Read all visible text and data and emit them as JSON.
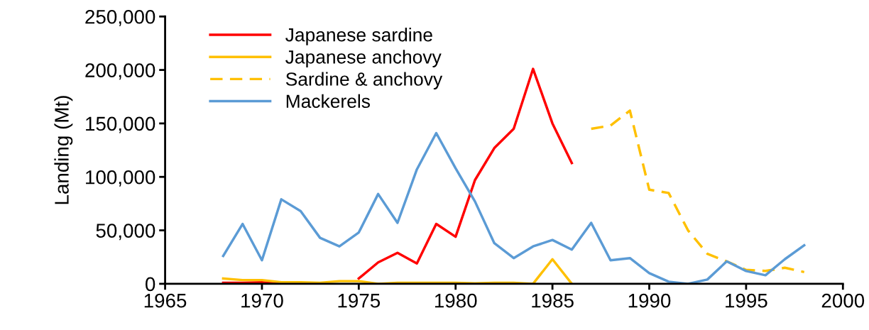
{
  "chart_data": {
    "type": "line",
    "ylabel": "Landing (Mt)",
    "legend": "top left",
    "grid": false,
    "marker": "none",
    "xlim": [
      1965,
      2000
    ],
    "xticks": [
      1965,
      1970,
      1975,
      1980,
      1985,
      1990,
      1995,
      2000
    ],
    "ylim": [
      0,
      250000
    ],
    "yticks": [
      {
        "value": 0,
        "label": "0"
      },
      {
        "value": 50000,
        "label": "50,000"
      },
      {
        "value": 100000,
        "label": "100,000"
      },
      {
        "value": 150000,
        "label": "150,000"
      },
      {
        "value": 200000,
        "label": "200,000"
      },
      {
        "value": 250000,
        "label": "250,000"
      }
    ],
    "series": [
      {
        "name": "Japanese sardine",
        "color": "#ff0000",
        "line_style": "solid",
        "x": [
          1968,
          1969,
          1970,
          1971,
          1972,
          1973,
          1974,
          1975,
          1976,
          1977,
          1978,
          1979,
          1980,
          1981,
          1982,
          1983,
          1984,
          1985,
          1986
        ],
        "values": [
          1000,
          1000,
          1500,
          0,
          null,
          null,
          null,
          5000,
          20000,
          29000,
          19000,
          56000,
          44000,
          97000,
          127000,
          145000,
          201000,
          150000,
          113000
        ]
      },
      {
        "name": "Japanese anchovy",
        "color": "#ffc000",
        "line_style": "solid",
        "x": [
          1968,
          1969,
          1970,
          1971,
          1972,
          1973,
          1974,
          1975,
          1976,
          1977,
          1978,
          1979,
          1980,
          1981,
          1982,
          1983,
          1984,
          1985,
          1986
        ],
        "values": [
          5000,
          3500,
          3500,
          1500,
          1500,
          1000,
          2500,
          2500,
          0,
          1000,
          1000,
          1000,
          1000,
          500,
          1000,
          1000,
          0,
          23000,
          0
        ]
      },
      {
        "name": "Sardine & anchovy",
        "color": "#ffc000",
        "line_style": "dashed",
        "x": [
          1987,
          1988,
          1989,
          1990,
          1991,
          1992,
          1993,
          1994,
          1995,
          1996,
          1997,
          1998
        ],
        "values": [
          145000,
          148000,
          162000,
          88000,
          85000,
          50000,
          28000,
          21000,
          13000,
          12000,
          15000,
          11000
        ]
      },
      {
        "name": "Mackerels",
        "color": "#5b9bd5",
        "line_style": "solid",
        "x": [
          1968,
          1969,
          1970,
          1971,
          1972,
          1973,
          1974,
          1975,
          1976,
          1977,
          1978,
          1979,
          1980,
          1981,
          1982,
          1983,
          1984,
          1985,
          1986,
          1987,
          1988,
          1989,
          1990,
          1991,
          1992,
          1993,
          1994,
          1995,
          1996,
          1997,
          1998
        ],
        "values": [
          26000,
          56000,
          22000,
          79000,
          68000,
          43000,
          35000,
          48000,
          84000,
          57000,
          107000,
          141000,
          108000,
          77000,
          38000,
          24000,
          35000,
          41000,
          32000,
          57000,
          22000,
          24000,
          10000,
          2000,
          0,
          4000,
          21000,
          12000,
          8000,
          23000,
          36000
        ]
      }
    ]
  }
}
